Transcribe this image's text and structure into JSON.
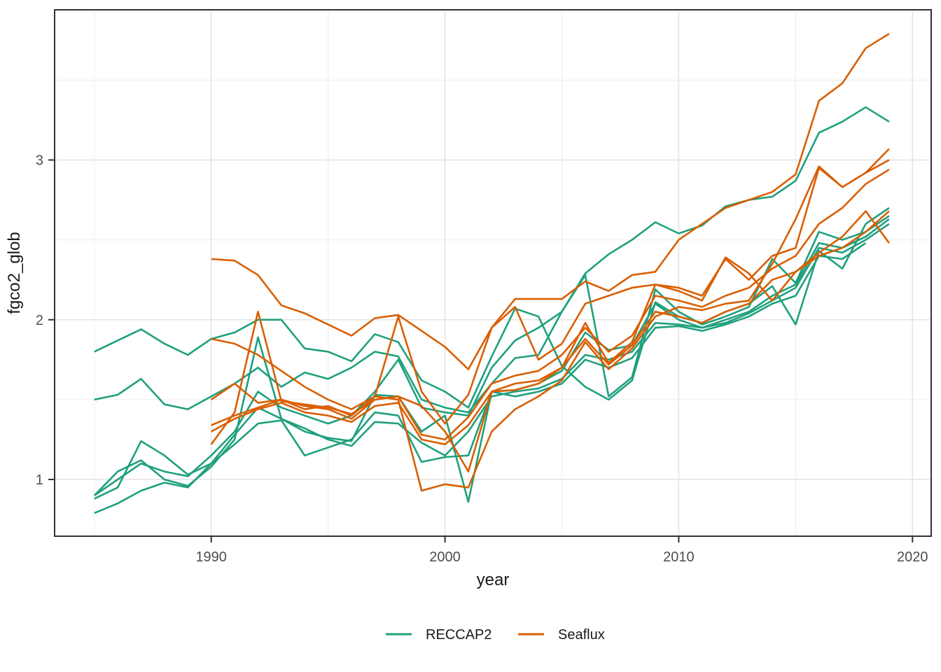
{
  "chart_data": {
    "type": "line",
    "title": "",
    "xlabel": "year",
    "ylabel": "fgco2_glob",
    "xlim": [
      1983.3,
      2020.8
    ],
    "ylim": [
      0.645,
      3.94
    ],
    "x_major_ticks": [
      1990,
      2000,
      2010,
      2020
    ],
    "x_minor_gridlines": [
      1985,
      1995,
      2005,
      2015
    ],
    "y_major_ticks": [
      1,
      2,
      3
    ],
    "y_minor_gridlines": [
      1.5,
      2.5,
      3.5
    ],
    "grid": "on",
    "panel_border": true,
    "legend": {
      "position": "bottom",
      "entries": [
        {
          "label": "RECCAP2",
          "color": "#1fa07e"
        },
        {
          "label": "Seaflux",
          "color": "#d95f02"
        }
      ]
    },
    "series": [
      {
        "name": "RECCAP2-1",
        "group": "RECCAP2",
        "color": "#1fa07e",
        "x": [
          1985,
          1986,
          1987,
          1988,
          1989,
          1990,
          1991,
          1992,
          1993,
          1994,
          1995,
          1996,
          1997,
          1998,
          1999,
          2000,
          2001,
          2002,
          2003,
          2004,
          2005,
          2006,
          2007,
          2008,
          2009,
          2010,
          2011,
          2012,
          2013,
          2014,
          2015,
          2016,
          2017,
          2018,
          2019
        ],
        "y": [
          1.8,
          1.87,
          1.94,
          1.85,
          1.78,
          1.88,
          1.92,
          2.0,
          2.0,
          1.82,
          1.8,
          1.74,
          1.91,
          1.86,
          1.62,
          1.55,
          1.45,
          1.77,
          2.07,
          2.02,
          1.71,
          1.58,
          1.5,
          1.62,
          2.11,
          2.02,
          1.98,
          2.05,
          2.1,
          2.21,
          1.97,
          2.43,
          2.32,
          2.6,
          2.7
        ]
      },
      {
        "name": "RECCAP2-2",
        "group": "RECCAP2",
        "color": "#1fa07e",
        "x": [
          1985,
          1986,
          1987,
          1988,
          1989,
          1990,
          1991,
          1992,
          1993,
          1994,
          1995,
          1996,
          1997,
          1998,
          1999,
          2000,
          2001,
          2002,
          2003,
          2004,
          2005,
          2006,
          2007,
          2008,
          2009,
          2010,
          2011,
          2012,
          2013,
          2014,
          2015,
          2016,
          2017,
          2018,
          2019
        ],
        "y": [
          1.5,
          1.53,
          1.63,
          1.47,
          1.44,
          1.52,
          1.6,
          1.7,
          1.58,
          1.67,
          1.63,
          1.7,
          1.8,
          1.77,
          1.5,
          1.45,
          1.42,
          1.6,
          1.76,
          1.78,
          2.05,
          2.28,
          1.52,
          1.64,
          2.19,
          2.05,
          1.97,
          2.02,
          2.08,
          2.38,
          2.23,
          2.55,
          2.5,
          2.55,
          2.65
        ]
      },
      {
        "name": "RECCAP2-3",
        "group": "RECCAP2",
        "color": "#1fa07e",
        "x": [
          1985,
          1986,
          1987,
          1988,
          1989,
          1990,
          1991,
          1992,
          1993,
          1994,
          1995,
          1996,
          1997,
          1998,
          1999,
          2000,
          2001,
          2002,
          2003,
          2004,
          2005,
          2006,
          2007,
          2008,
          2009,
          2010,
          2011,
          2012,
          2013,
          2014,
          2015,
          2016,
          2017,
          2018,
          2019
        ],
        "y": [
          0.9,
          1.0,
          1.1,
          1.05,
          1.02,
          1.15,
          1.3,
          1.55,
          1.45,
          1.4,
          1.35,
          1.4,
          1.55,
          1.75,
          1.45,
          1.42,
          1.4,
          1.7,
          1.87,
          1.95,
          2.05,
          2.29,
          2.41,
          2.5,
          2.61,
          2.54,
          2.59,
          2.71,
          2.75,
          2.77,
          2.87,
          3.17,
          3.24,
          3.33,
          3.24
        ]
      },
      {
        "name": "RECCAP2-4",
        "group": "RECCAP2",
        "color": "#1fa07e",
        "x": [
          1985,
          1986,
          1987,
          1988,
          1989,
          1990,
          1991,
          1992,
          1993,
          1994,
          1995,
          1996,
          1997,
          1998,
          1999,
          2000,
          2001,
          2002,
          2003,
          2004,
          2005,
          2006,
          2007,
          2008,
          2009,
          2010,
          2011,
          2012,
          2013,
          2014,
          2015,
          2016,
          2017,
          2018,
          2019
        ],
        "y": [
          0.88,
          0.95,
          1.24,
          1.15,
          1.03,
          1.1,
          1.28,
          1.45,
          1.38,
          1.3,
          1.26,
          1.24,
          1.53,
          1.52,
          1.3,
          1.4,
          0.86,
          1.55,
          1.56,
          1.6,
          1.68,
          1.92,
          1.81,
          1.84,
          2.1,
          2.0,
          1.95,
          2.0,
          2.05,
          2.15,
          2.22,
          2.48,
          2.45,
          2.52,
          2.63
        ]
      },
      {
        "name": "RECCAP2-5",
        "group": "RECCAP2",
        "color": "#1fa07e",
        "x": [
          1985,
          1986,
          1987,
          1988,
          1989,
          1990,
          1991,
          1992,
          1993,
          1994,
          1995,
          1996,
          1997,
          1998,
          1999,
          2000,
          2001,
          2002,
          2003,
          2004,
          2005,
          2006,
          2007,
          2008,
          2009,
          2010,
          2011,
          2012,
          2013,
          2014,
          2015,
          2016,
          2017,
          2018,
          2019
        ],
        "y": [
          0.9,
          1.05,
          1.12,
          1.0,
          0.96,
          1.08,
          1.25,
          1.89,
          1.38,
          1.32,
          1.25,
          1.21,
          1.36,
          1.35,
          1.23,
          1.15,
          1.3,
          1.52,
          1.55,
          1.57,
          1.63,
          1.78,
          1.75,
          1.8,
          1.98,
          1.97,
          1.95,
          1.98,
          2.04,
          2.12,
          2.2,
          2.45,
          2.42,
          2.5,
          2.6
        ]
      },
      {
        "name": "RECCAP2-6",
        "group": "RECCAP2",
        "color": "#1fa07e",
        "x": [
          1985,
          1986,
          1987,
          1988,
          1989,
          1990,
          1991,
          1992,
          1993,
          1994,
          1995,
          1996,
          1997,
          1998,
          1999,
          2000,
          2001,
          2002,
          2003,
          2004,
          2005,
          2006,
          2007,
          2008,
          2009,
          2010,
          2011,
          2012,
          2013,
          2014,
          2015,
          2016,
          2017,
          2018
        ],
        "y": [
          0.79,
          0.85,
          0.93,
          0.98,
          0.95,
          1.1,
          1.22,
          1.35,
          1.37,
          1.15,
          1.2,
          1.25,
          1.42,
          1.4,
          1.11,
          1.14,
          1.15,
          1.55,
          1.52,
          1.55,
          1.6,
          1.75,
          1.7,
          1.76,
          1.95,
          1.96,
          1.93,
          1.97,
          2.02,
          2.1,
          2.15,
          2.4,
          2.38,
          2.48
        ]
      },
      {
        "name": "Seaflux-1",
        "group": "Seaflux",
        "color": "#d95f02",
        "x": [
          1990,
          1991,
          1992,
          1993,
          1994,
          1995,
          1996,
          1997,
          1998,
          1999,
          2000,
          2001,
          2002,
          2003,
          2004,
          2005,
          2006,
          2007,
          2008,
          2009,
          2010,
          2011,
          2012,
          2013,
          2014,
          2015,
          2016,
          2017,
          2018,
          2019
        ],
        "y": [
          2.38,
          2.37,
          2.28,
          2.09,
          2.04,
          1.97,
          1.9,
          2.01,
          2.03,
          1.93,
          1.83,
          1.69,
          1.95,
          2.13,
          2.13,
          2.13,
          2.24,
          2.18,
          2.28,
          2.3,
          2.5,
          2.6,
          2.7,
          2.75,
          2.8,
          2.91,
          3.37,
          3.48,
          3.7,
          3.79
        ]
      },
      {
        "name": "Seaflux-2",
        "group": "Seaflux",
        "color": "#d95f02",
        "x": [
          1990,
          1991,
          1992,
          1993,
          1994,
          1995,
          1996,
          1997,
          1998,
          1999,
          2000,
          2001,
          2002,
          2003,
          2004,
          2005,
          2006,
          2007,
          2008,
          2009,
          2010,
          2011,
          2012,
          2013,
          2014,
          2015,
          2016,
          2017,
          2018,
          2019
        ],
        "y": [
          1.88,
          1.85,
          1.78,
          1.68,
          1.58,
          1.5,
          1.44,
          1.52,
          1.5,
          0.93,
          0.97,
          0.95,
          1.3,
          1.44,
          1.52,
          1.62,
          1.86,
          1.69,
          1.82,
          2.02,
          2.08,
          2.06,
          2.1,
          2.12,
          2.35,
          2.63,
          2.96,
          2.83,
          2.92,
          3.07
        ]
      },
      {
        "name": "Seaflux-3",
        "group": "Seaflux",
        "color": "#d95f02",
        "x": [
          1990,
          1991,
          1992,
          1993,
          1994,
          1995,
          1996,
          1997,
          1998,
          1999,
          2000,
          2001,
          2002,
          2003,
          2004,
          2005,
          2006,
          2007,
          2008,
          2009,
          2010,
          2011,
          2012,
          2013,
          2014,
          2015,
          2016,
          2017,
          2018,
          2019
        ],
        "y": [
          1.22,
          1.42,
          2.05,
          1.49,
          1.47,
          1.45,
          1.41,
          1.5,
          1.52,
          1.46,
          1.3,
          1.05,
          1.55,
          1.56,
          1.6,
          1.7,
          1.98,
          1.73,
          1.86,
          2.22,
          2.18,
          2.12,
          2.39,
          2.29,
          2.12,
          2.3,
          2.42,
          2.52,
          2.68,
          2.48
        ]
      },
      {
        "name": "Seaflux-4",
        "group": "Seaflux",
        "color": "#d95f02",
        "x": [
          1990,
          1991,
          1992,
          1993,
          1994,
          1995,
          1996,
          1997,
          1998,
          1999,
          2000,
          2001,
          2002,
          2003,
          2004,
          2005,
          2006,
          2007,
          2008,
          2009,
          2010,
          2011,
          2012,
          2013,
          2014,
          2015,
          2016,
          2017,
          2018,
          2019
        ],
        "y": [
          1.5,
          1.6,
          1.48,
          1.5,
          1.44,
          1.46,
          1.4,
          1.52,
          2.02,
          1.55,
          1.35,
          1.53,
          1.95,
          2.08,
          1.75,
          1.85,
          2.1,
          2.15,
          2.2,
          2.22,
          2.2,
          2.15,
          2.38,
          2.25,
          2.4,
          2.45,
          2.95,
          2.83,
          2.92,
          3.0
        ]
      },
      {
        "name": "Seaflux-5",
        "group": "Seaflux",
        "color": "#d95f02",
        "x": [
          1990,
          1991,
          1992,
          1993,
          1994,
          1995,
          1996,
          1997,
          1998,
          1999,
          2000,
          2001,
          2002,
          2003,
          2004,
          2005,
          2006,
          2007,
          2008,
          2009,
          2010,
          2011,
          2012,
          2013,
          2014,
          2015,
          2016,
          2017,
          2018,
          2019
        ],
        "y": [
          1.34,
          1.4,
          1.45,
          1.5,
          1.46,
          1.44,
          1.38,
          1.5,
          1.52,
          1.28,
          1.25,
          1.39,
          1.6,
          1.65,
          1.68,
          1.78,
          1.95,
          1.8,
          1.9,
          2.15,
          2.12,
          2.08,
          2.15,
          2.2,
          2.32,
          2.4,
          2.6,
          2.7,
          2.85,
          2.94
        ]
      },
      {
        "name": "Seaflux-6",
        "group": "Seaflux",
        "color": "#d95f02",
        "x": [
          1990,
          1991,
          1992,
          1993,
          1994,
          1995,
          1996,
          1997,
          1998,
          1999,
          2000,
          2001,
          2002,
          2003,
          2004,
          2005,
          2006,
          2007,
          2008,
          2009,
          2010,
          2011,
          2012,
          2013,
          2014,
          2015,
          2016,
          2017,
          2018,
          2019
        ],
        "y": [
          1.3,
          1.38,
          1.44,
          1.48,
          1.42,
          1.4,
          1.36,
          1.46,
          1.48,
          1.25,
          1.22,
          1.34,
          1.55,
          1.6,
          1.62,
          1.7,
          1.88,
          1.72,
          1.84,
          2.05,
          2.02,
          1.98,
          2.05,
          2.1,
          2.25,
          2.3,
          2.4,
          2.45,
          2.55,
          2.68
        ]
      }
    ]
  },
  "style_colors": {
    "panel_background": "#ffffff",
    "major_gridline": "#e4e4e4",
    "minor_gridline": "#f0f0f0",
    "panel_border": "#333333",
    "tick_mark": "#333333",
    "tick_text": "#4d4d4d",
    "axis_title_text": "#1a1a1a"
  }
}
